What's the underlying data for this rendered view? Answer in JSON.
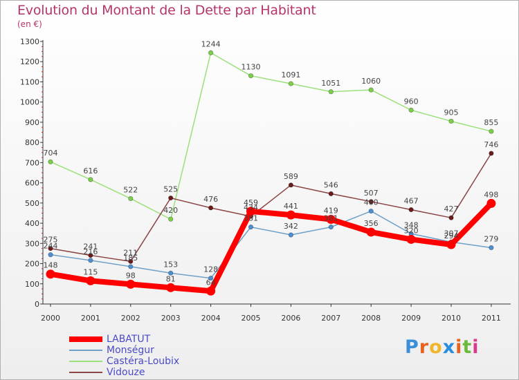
{
  "chart_data": {
    "type": "line",
    "title": "Evolution du Montant de la Dette par Habitant",
    "subtitle": "(en €)",
    "xlabel": "",
    "ylabel": "",
    "ylim": [
      0,
      1300
    ],
    "yticks": [
      0,
      100,
      200,
      300,
      400,
      500,
      600,
      700,
      800,
      900,
      1000,
      1100,
      1200,
      1300
    ],
    "categories": [
      "2000",
      "2001",
      "2002",
      "2003",
      "2004",
      "2005",
      "2006",
      "2007",
      "2008",
      "2009",
      "2010",
      "2011"
    ],
    "grid": false,
    "legend_position": "bottom-left",
    "series": [
      {
        "name": "LABATUT",
        "color": "#ff0000",
        "marker_color": "#ff0000",
        "width": "thick",
        "values": [
          148,
          115,
          98,
          81,
          64,
          459,
          441,
          419,
          356,
          320,
          294,
          498
        ]
      },
      {
        "name": "Monségur",
        "color": "#6ea0c8",
        "marker_color": "#4d8fd0",
        "width": "thin",
        "values": [
          244,
          216,
          185,
          153,
          128,
          381,
          342,
          381,
          460,
          348,
          307,
          279
        ]
      },
      {
        "name": "Castéra-Loubix",
        "color": "#9be07a",
        "marker_color": "#7cd048",
        "width": "thin",
        "values": [
          704,
          616,
          522,
          420,
          1244,
          1130,
          1091,
          1051,
          1060,
          960,
          905,
          855
        ]
      },
      {
        "name": "Vidouze",
        "color": "#8b4545",
        "marker_color": "#6b1a1a",
        "width": "thin",
        "values": [
          275,
          241,
          211,
          525,
          476,
          434,
          589,
          546,
          507,
          467,
          427,
          746
        ]
      }
    ],
    "data_labels": [
      {
        "series": 0,
        "values": [
          "148",
          "115",
          "98",
          "81",
          "64",
          "459",
          "441",
          "419",
          "356",
          "320",
          "294",
          "498"
        ]
      },
      {
        "series": 1,
        "values": [
          "244",
          "216",
          "185",
          "153",
          "128",
          "381",
          "342",
          "381",
          "460",
          "348",
          "307",
          "279"
        ]
      },
      {
        "series": 2,
        "values": [
          "704",
          "616",
          "522",
          "420",
          "1244",
          "1130",
          "1091",
          "1051",
          "1060",
          "960",
          "905",
          "855"
        ]
      },
      {
        "series": 3,
        "values": [
          "275",
          "241",
          "211",
          "525",
          "476",
          "434",
          "589",
          "546",
          "507",
          "467",
          "427",
          "746"
        ]
      }
    ]
  },
  "branding": {
    "logo_text": "Proxiti",
    "logo_colors": [
      "#3b8ed8",
      "#e8621e",
      "#f0b72a",
      "#2b8de0",
      "#e8621e",
      "#6aba3c",
      "#d83a8c"
    ]
  }
}
